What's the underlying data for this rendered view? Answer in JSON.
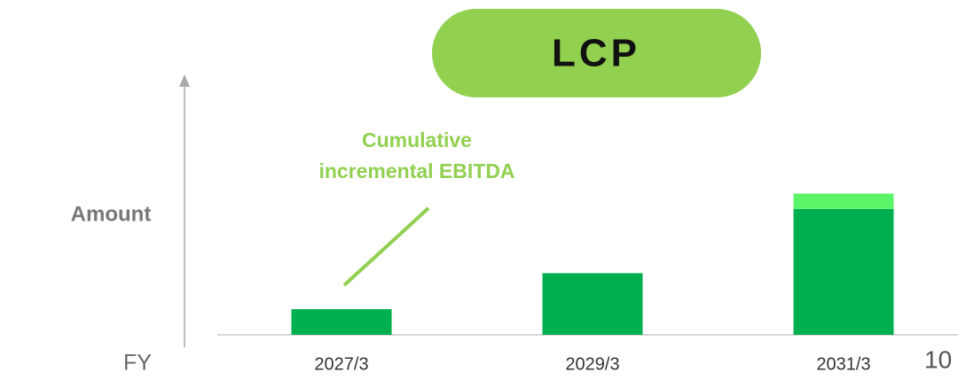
{
  "chart_data": {
    "type": "stacked-bar",
    "title": "LCP",
    "categories": [
      "2027/3",
      "2029/3",
      "2031/3"
    ],
    "series": [
      {
        "color": "#00b050",
        "values": [
          10,
          24,
          49
        ]
      },
      {
        "color": "#5cf56a",
        "values": [
          null,
          null,
          6
        ]
      }
    ],
    "ylim": [
      0,
      100
    ],
    "ylabel": "Amount",
    "xlabel": "FY",
    "annotation": "Cumulative incremental EBITDA",
    "annotation_lines": [
      "Cumulative",
      "incremental EBITDA"
    ],
    "page_number": "10"
  }
}
